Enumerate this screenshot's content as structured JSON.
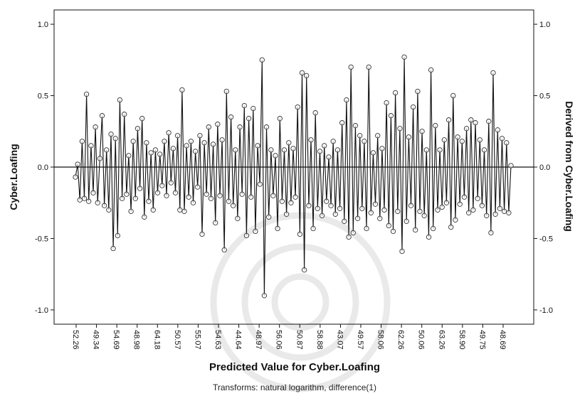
{
  "chart_data": {
    "type": "line",
    "title": "",
    "xlabel": "Predicted Value for Cyber.Loafing",
    "ylabel": "Cyber.Loafing",
    "ylabel_right": "Derived from Cyber.Loafing",
    "footnote": "Transforms: natural logarithm, difference(1)",
    "ylim": [
      -1.1,
      1.1
    ],
    "yticks": [
      -1.0,
      -0.5,
      0.0,
      0.5,
      1.0
    ],
    "ytick_labels": [
      "-1.0",
      "-0.5",
      "0.0",
      "0.5",
      "1.0"
    ],
    "grid": false,
    "zero_line": 0.0,
    "x_tick_labels": [
      "52.26",
      "49.34",
      "54.69",
      "48.98",
      "64.18",
      "50.57",
      "55.07",
      "54.63",
      "44.64",
      "48.97",
      "56.06",
      "50.87",
      "58.88",
      "43.07",
      "49.57",
      "58.06",
      "62.26",
      "50.06",
      "63.26",
      "58.90",
      "49.75",
      "48.69"
    ],
    "series": [
      {
        "values": [
          -0.07,
          0.02,
          -0.23,
          0.18,
          -0.22,
          0.51,
          -0.24,
          0.15,
          -0.18,
          0.28,
          -0.25,
          0.06,
          0.36,
          -0.27,
          0.12,
          -0.3,
          0.23,
          -0.57,
          0.2,
          -0.48,
          0.47,
          -0.22,
          0.37,
          -0.19,
          0.08,
          -0.31,
          0.18,
          -0.22,
          0.27,
          -0.15,
          0.34,
          -0.35,
          0.17,
          -0.24,
          0.1,
          -0.3,
          0.12,
          -0.18,
          0.09,
          -0.13,
          0.18,
          -0.2,
          0.24,
          -0.11,
          0.13,
          -0.18,
          0.22,
          -0.3,
          0.54,
          -0.31,
          0.15,
          -0.21,
          0.18,
          -0.25,
          0.11,
          -0.14,
          0.22,
          -0.47,
          0.17,
          -0.19,
          0.28,
          -0.22,
          0.16,
          -0.39,
          0.3,
          -0.2,
          0.19,
          -0.58,
          0.53,
          -0.24,
          0.35,
          -0.27,
          0.12,
          -0.36,
          0.28,
          -0.19,
          0.43,
          -0.48,
          0.34,
          -0.21,
          0.41,
          -0.45,
          0.15,
          -0.12,
          0.75,
          -0.9,
          0.28,
          -0.35,
          0.12,
          -0.2,
          0.08,
          -0.43,
          0.34,
          -0.24,
          0.12,
          -0.33,
          0.17,
          -0.25,
          0.13,
          -0.21,
          0.42,
          -0.47,
          0.66,
          -0.72,
          0.64,
          -0.27,
          0.19,
          -0.43,
          0.38,
          -0.29,
          0.11,
          -0.34,
          0.15,
          -0.24,
          0.07,
          -0.27,
          0.18,
          -0.33,
          0.12,
          -0.29,
          0.31,
          -0.38,
          0.47,
          -0.49,
          0.7,
          -0.46,
          0.29,
          -0.36,
          0.22,
          -0.29,
          0.18,
          -0.43,
          0.7,
          -0.32,
          0.1,
          -0.26,
          0.22,
          -0.36,
          0.13,
          -0.3,
          0.45,
          -0.41,
          0.36,
          -0.45,
          0.52,
          -0.31,
          0.27,
          -0.59,
          0.77,
          -0.38,
          0.21,
          -0.27,
          0.42,
          -0.44,
          0.53,
          -0.31,
          0.25,
          -0.34,
          0.12,
          -0.49,
          0.68,
          -0.43,
          0.29,
          -0.3,
          0.12,
          -0.28,
          0.19,
          -0.25,
          0.33,
          -0.42,
          0.5,
          -0.37,
          0.21,
          -0.26,
          0.18,
          -0.21,
          0.27,
          -0.32,
          0.33,
          -0.3,
          0.31,
          -0.22,
          0.19,
          -0.27,
          0.12,
          -0.34,
          0.32,
          -0.46,
          0.66,
          -0.33,
          0.26,
          -0.29,
          0.2,
          -0.31,
          0.17,
          -0.32,
          0.01
        ]
      }
    ]
  }
}
